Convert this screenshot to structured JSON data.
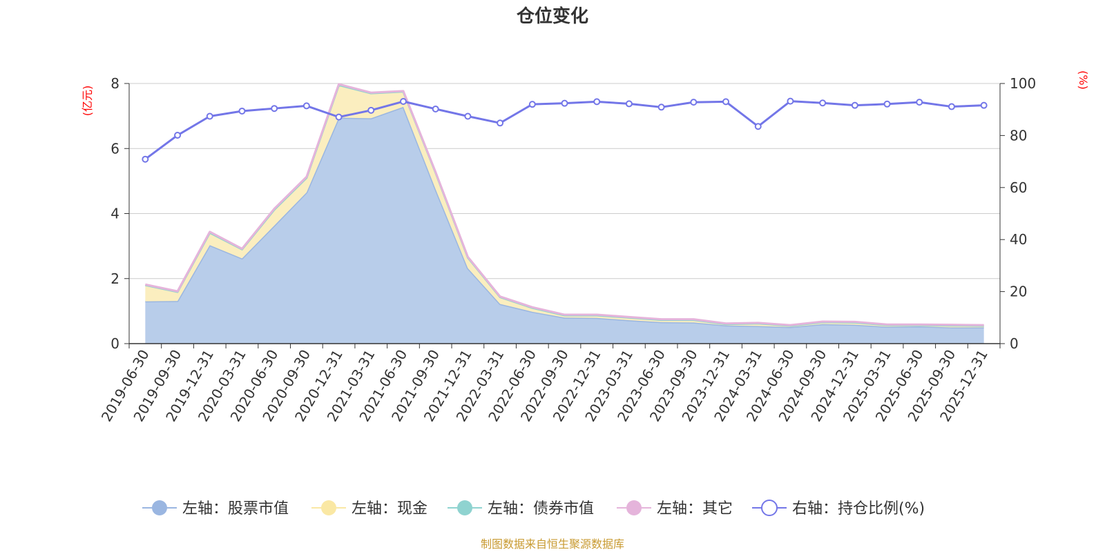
{
  "chart_data": {
    "type": "area",
    "title": "仓位变化",
    "left_axis_unit": "(亿元)",
    "right_axis_unit": "(%)",
    "left_ylim": [
      0,
      8
    ],
    "left_ticks": [
      "0",
      "2",
      "4",
      "6",
      "8"
    ],
    "right_ylim": [
      0,
      100
    ],
    "right_ticks": [
      "0",
      "20",
      "40",
      "60",
      "80",
      "100"
    ],
    "categories": [
      "2019-06-30",
      "2019-09-30",
      "2019-12-31",
      "2020-03-31",
      "2020-06-30",
      "2020-09-30",
      "2020-12-31",
      "2021-03-31",
      "2021-06-30",
      "2021-09-30",
      "2021-12-31",
      "2022-03-31",
      "2022-06-30",
      "2022-09-30",
      "2022-12-31",
      "2023-03-31",
      "2023-06-30",
      "2023-09-30",
      "2023-12-31",
      "2024-03-31",
      "2024-06-30",
      "2024-09-30",
      "2024-12-31",
      "2025-03-31",
      "2025-06-30",
      "2025-09-30",
      "2025-12-31"
    ],
    "series": [
      {
        "name": "左轴：股票市值",
        "axis": "left",
        "color": "#9ab6e1",
        "fill": "#b8cdea",
        "values": [
          1.3,
          1.31,
          3.03,
          2.62,
          3.63,
          4.65,
          6.95,
          6.93,
          7.28,
          4.75,
          2.32,
          1.22,
          0.98,
          0.8,
          0.79,
          0.72,
          0.66,
          0.65,
          0.56,
          0.54,
          0.51,
          0.6,
          0.58,
          0.52,
          0.53,
          0.5,
          0.5
        ]
      },
      {
        "name": "左轴：现金",
        "axis": "left",
        "color": "#fae8a4",
        "fill": "#fbeebf",
        "values": [
          0.5,
          0.28,
          0.38,
          0.28,
          0.49,
          0.45,
          1.0,
          0.77,
          0.47,
          0.51,
          0.33,
          0.21,
          0.12,
          0.07,
          0.08,
          0.08,
          0.07,
          0.08,
          0.04,
          0.08,
          0.04,
          0.06,
          0.07,
          0.05,
          0.04,
          0.06,
          0.05
        ]
      },
      {
        "name": "左轴：债券市值",
        "axis": "left",
        "color": "#8fd3d0",
        "fill": "#a9dcda",
        "values": [
          0,
          0,
          0,
          0,
          0,
          0,
          0,
          0,
          0,
          0,
          0,
          0,
          0,
          0,
          0,
          0,
          0,
          0,
          0,
          0,
          0,
          0,
          0,
          0,
          0,
          0,
          0
        ]
      },
      {
        "name": "左轴：其它",
        "axis": "left",
        "color": "#e5b4db",
        "fill": "#eec7e6",
        "values": [
          0.02,
          0.02,
          0.03,
          0.02,
          0.03,
          0.03,
          0.03,
          0.02,
          0.02,
          0.02,
          0.02,
          0.02,
          0.02,
          0.02,
          0.02,
          0.02,
          0.02,
          0.02,
          0.02,
          0.02,
          0.02,
          0.02,
          0.02,
          0.02,
          0.02,
          0.02,
          0.02
        ]
      },
      {
        "name": "右轴：持仓比例(%)",
        "axis": "right",
        "color": "#7376e8",
        "values": [
          70.9,
          80.1,
          87.4,
          89.4,
          90.4,
          91.4,
          87.1,
          89.7,
          93.1,
          90.2,
          87.4,
          84.8,
          92.0,
          92.4,
          93.0,
          92.2,
          90.9,
          92.8,
          93.0,
          83.5,
          93.2,
          92.5,
          91.6,
          92.1,
          92.8,
          91.1,
          91.6
        ]
      }
    ],
    "legend_position": "bottom",
    "grid": true
  },
  "footer": {
    "source": "制图数据来自恒生聚源数据库"
  },
  "colors": {
    "title": "#333333",
    "unit": "#ff0000",
    "source": "#c89a30",
    "grid": "#cccccc",
    "axis": "#333333"
  }
}
